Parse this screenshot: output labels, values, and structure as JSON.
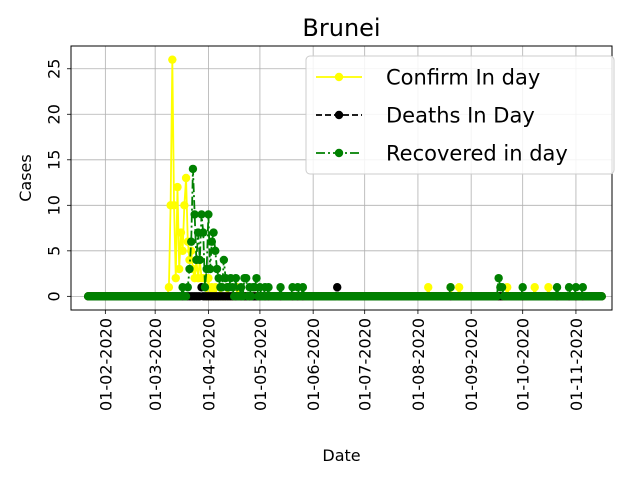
{
  "chart_data": {
    "type": "line",
    "title": "Brunei",
    "xlabel": "Date",
    "ylabel": "Cases",
    "x_type": "date",
    "xlim": [
      "2020-01-12",
      "2020-11-22"
    ],
    "ylim": [
      -1.5,
      27.5
    ],
    "grid": true,
    "legend_position": "upper right",
    "x_ticks": [
      {
        "date": "2020-02-01",
        "label": "01-02-2020"
      },
      {
        "date": "2020-03-01",
        "label": "01-03-2020"
      },
      {
        "date": "2020-04-01",
        "label": "01-04-2020"
      },
      {
        "date": "2020-05-01",
        "label": "01-05-2020"
      },
      {
        "date": "2020-06-01",
        "label": "01-06-2020"
      },
      {
        "date": "2020-07-01",
        "label": "01-07-2020"
      },
      {
        "date": "2020-08-01",
        "label": "01-08-2020"
      },
      {
        "date": "2020-09-01",
        "label": "01-09-2020"
      },
      {
        "date": "2020-10-01",
        "label": "01-10-2020"
      },
      {
        "date": "2020-11-01",
        "label": "01-11-2020"
      }
    ],
    "y_ticks": [
      0,
      5,
      10,
      15,
      20,
      25
    ],
    "date_range": [
      "2020-01-22",
      "2020-11-16"
    ],
    "series": [
      {
        "name": "Confirm In day",
        "color": "#ffff00",
        "line_style": "solid",
        "marker": "circle",
        "points": [
          [
            "2020-03-09",
            1
          ],
          [
            "2020-03-10",
            10
          ],
          [
            "2020-03-11",
            26
          ],
          [
            "2020-03-12",
            10
          ],
          [
            "2020-03-13",
            2
          ],
          [
            "2020-03-14",
            12
          ],
          [
            "2020-03-15",
            3
          ],
          [
            "2020-03-16",
            7
          ],
          [
            "2020-03-17",
            5
          ],
          [
            "2020-03-18",
            10
          ],
          [
            "2020-03-19",
            13
          ],
          [
            "2020-03-20",
            6
          ],
          [
            "2020-03-21",
            4
          ],
          [
            "2020-03-22",
            5
          ],
          [
            "2020-03-23",
            3
          ],
          [
            "2020-03-24",
            2
          ],
          [
            "2020-03-25",
            4
          ],
          [
            "2020-03-26",
            2
          ],
          [
            "2020-03-27",
            4
          ],
          [
            "2020-03-28",
            2
          ],
          [
            "2020-03-29",
            2
          ],
          [
            "2020-03-30",
            2
          ],
          [
            "2020-04-01",
            2
          ],
          [
            "2020-04-03",
            1
          ],
          [
            "2020-04-05",
            1
          ],
          [
            "2020-04-08",
            1
          ],
          [
            "2020-04-12",
            1
          ],
          [
            "2020-04-18",
            1
          ],
          [
            "2020-08-07",
            1
          ],
          [
            "2020-08-20",
            1
          ],
          [
            "2020-08-25",
            1
          ],
          [
            "2020-09-22",
            1
          ],
          [
            "2020-10-08",
            1
          ],
          [
            "2020-10-16",
            1
          ]
        ]
      },
      {
        "name": "Deaths In Day",
        "color": "#000000",
        "line_style": "dashed",
        "marker": "circle",
        "points": [
          [
            "2020-03-28",
            1
          ],
          [
            "2020-06-15",
            1
          ]
        ]
      },
      {
        "name": "Recovered in day",
        "color": "#008000",
        "line_style": "dashdot",
        "marker": "circle",
        "points": [
          [
            "2020-03-17",
            1
          ],
          [
            "2020-03-20",
            1
          ],
          [
            "2020-03-21",
            3
          ],
          [
            "2020-03-22",
            6
          ],
          [
            "2020-03-23",
            14
          ],
          [
            "2020-03-24",
            9
          ],
          [
            "2020-03-25",
            4
          ],
          [
            "2020-03-26",
            7
          ],
          [
            "2020-03-27",
            4
          ],
          [
            "2020-03-28",
            9
          ],
          [
            "2020-03-29",
            7
          ],
          [
            "2020-03-30",
            1
          ],
          [
            "2020-03-31",
            3
          ],
          [
            "2020-04-01",
            9
          ],
          [
            "2020-04-02",
            3
          ],
          [
            "2020-04-03",
            6
          ],
          [
            "2020-04-04",
            7
          ],
          [
            "2020-04-05",
            5
          ],
          [
            "2020-04-06",
            3
          ],
          [
            "2020-04-07",
            2
          ],
          [
            "2020-04-08",
            1
          ],
          [
            "2020-04-09",
            1
          ],
          [
            "2020-04-10",
            4
          ],
          [
            "2020-04-11",
            2
          ],
          [
            "2020-04-12",
            1
          ],
          [
            "2020-04-13",
            1
          ],
          [
            "2020-04-14",
            2
          ],
          [
            "2020-04-15",
            1
          ],
          [
            "2020-04-17",
            2
          ],
          [
            "2020-04-20",
            1
          ],
          [
            "2020-04-22",
            2
          ],
          [
            "2020-04-23",
            2
          ],
          [
            "2020-04-25",
            1
          ],
          [
            "2020-04-27",
            1
          ],
          [
            "2020-04-28",
            1
          ],
          [
            "2020-04-29",
            2
          ],
          [
            "2020-05-01",
            1
          ],
          [
            "2020-05-04",
            1
          ],
          [
            "2020-05-06",
            1
          ],
          [
            "2020-05-13",
            1
          ],
          [
            "2020-05-20",
            1
          ],
          [
            "2020-05-23",
            1
          ],
          [
            "2020-05-26",
            1
          ],
          [
            "2020-08-20",
            1
          ],
          [
            "2020-09-17",
            2
          ],
          [
            "2020-09-18",
            1
          ],
          [
            "2020-09-19",
            1
          ],
          [
            "2020-10-01",
            1
          ],
          [
            "2020-10-21",
            1
          ],
          [
            "2020-10-28",
            1
          ],
          [
            "2020-11-01",
            1
          ],
          [
            "2020-11-05",
            1
          ]
        ]
      }
    ]
  }
}
